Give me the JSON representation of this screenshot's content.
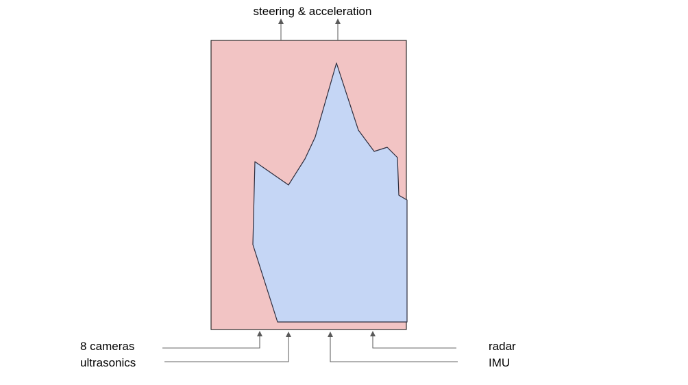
{
  "labels": {
    "output": "steering & acceleration",
    "inputs_left": [
      "8 cameras",
      "ultrasonics"
    ],
    "inputs_right": [
      "radar",
      "IMU"
    ]
  },
  "colors": {
    "box_fill": "#f2c4c4",
    "box_stroke": "#1a1a1a",
    "shape_fill": "#c5d6f5",
    "shape_stroke": "#2b2b3b",
    "wire": "#666666",
    "text": "#000000"
  }
}
